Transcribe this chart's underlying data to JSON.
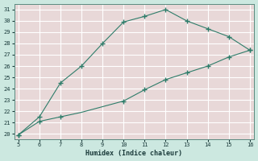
{
  "xlabel": "Humidex (Indice chaleur)",
  "bg_color": "#cce8e0",
  "plot_bg_color": "#e8d8d8",
  "grid_color": "#ffffff",
  "line_color": "#2e7d6a",
  "upper_x": [
    5,
    6,
    7,
    8,
    9,
    10,
    11,
    12,
    13,
    14,
    15,
    16
  ],
  "upper_y": [
    19.9,
    21.5,
    24.5,
    26.0,
    28.0,
    29.9,
    30.4,
    31.0,
    30.0,
    29.3,
    28.6,
    27.4
  ],
  "lower_x": [
    5,
    6,
    7,
    10,
    11,
    12,
    13,
    14,
    15,
    16
  ],
  "lower_y": [
    19.9,
    21.1,
    21.5,
    22.9,
    23.9,
    24.8,
    25.4,
    26.0,
    26.8,
    27.4
  ],
  "lower_line_x": [
    5,
    6,
    7,
    8,
    9,
    10,
    11,
    12,
    13,
    14,
    15,
    16
  ],
  "lower_line_y": [
    19.9,
    21.1,
    21.5,
    21.9,
    22.4,
    22.9,
    23.9,
    24.8,
    25.4,
    26.0,
    26.8,
    27.4
  ],
  "xlim": [
    5,
    16
  ],
  "ylim": [
    19.5,
    31.5
  ],
  "xticks": [
    5,
    6,
    7,
    8,
    9,
    10,
    11,
    12,
    13,
    14,
    15,
    16
  ],
  "yticks": [
    20,
    21,
    22,
    23,
    24,
    25,
    26,
    27,
    28,
    29,
    30,
    31
  ],
  "tick_fontsize": 5.0,
  "xlabel_fontsize": 6.0
}
